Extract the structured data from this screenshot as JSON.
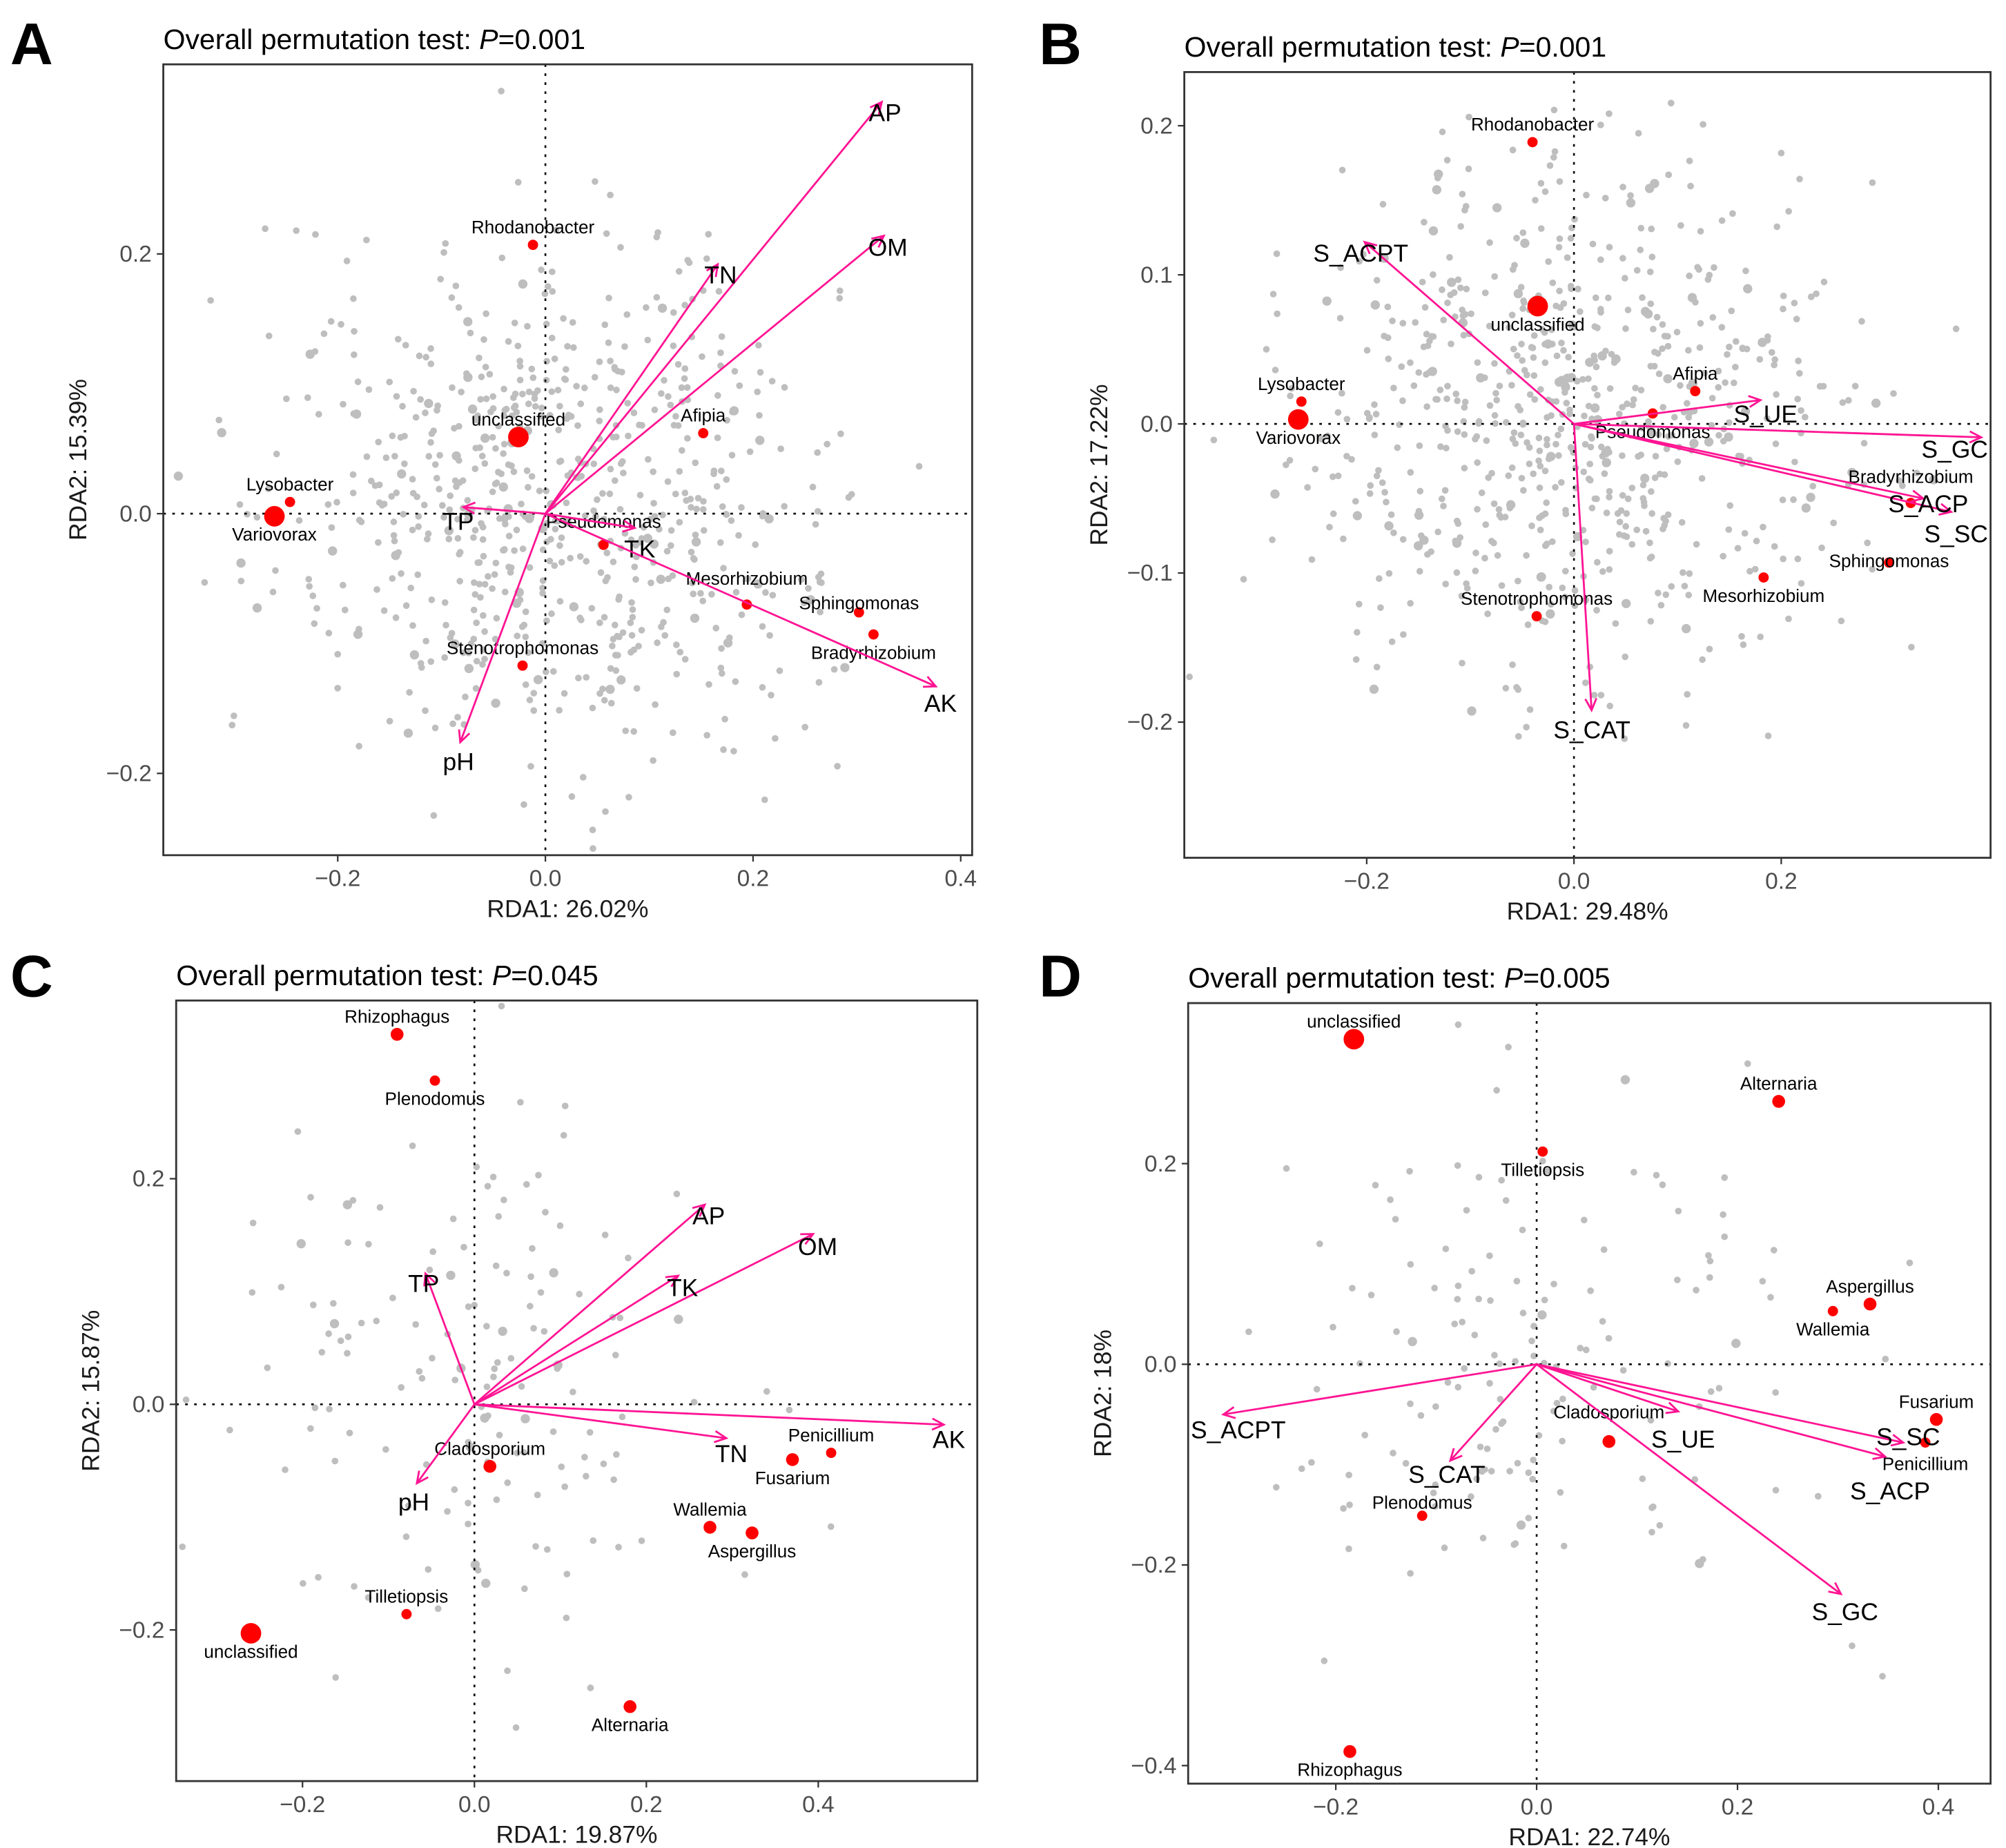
{
  "chart_data": [
    {
      "type": "scatter",
      "panel_letter": "A",
      "title_prefix": "Overall permutation test: ",
      "title_p": "P",
      "title_value": "=0.001",
      "xlabel": "RDA1: 26.02%",
      "ylabel": "RDA2: 15.39%",
      "xlim": [
        -0.368,
        0.411
      ],
      "ylim": [
        -0.263,
        0.346
      ],
      "xticks": [
        {
          "v": -0.2,
          "label": "−0.2"
        },
        {
          "v": 0,
          "label": "0.0"
        },
        {
          "v": 0.2,
          "label": "0.2"
        },
        {
          "v": 0.4,
          "label": "0.4"
        }
      ],
      "yticks": [
        {
          "v": -0.2,
          "label": "−0.2"
        },
        {
          "v": 0,
          "label": "0.0"
        },
        {
          "v": 0.2,
          "label": "0.2"
        }
      ],
      "background_point_count": 700,
      "background_spread": [
        0.13,
        0.1
      ],
      "arrows": [
        {
          "name": "AP",
          "x": 0.324,
          "y": 0.317
        },
        {
          "name": "OM",
          "x": 0.326,
          "y": 0.214
        },
        {
          "name": "TN",
          "x": 0.166,
          "y": 0.192
        },
        {
          "name": "TP",
          "x": -0.079,
          "y": 0.005
        },
        {
          "name": "pH",
          "x": -0.082,
          "y": -0.176
        },
        {
          "name": "TK",
          "x": 0.086,
          "y": -0.011
        },
        {
          "name": "AK",
          "x": 0.376,
          "y": -0.133
        }
      ],
      "species": [
        {
          "name": "Rhodanobacter",
          "x": -0.012,
          "y": 0.207,
          "size": "small",
          "label": "above"
        },
        {
          "name": "unclassified",
          "x": -0.026,
          "y": 0.059,
          "size": "large",
          "label": "above"
        },
        {
          "name": "Afipia",
          "x": 0.152,
          "y": 0.062,
          "size": "small",
          "label": "above"
        },
        {
          "name": "Lysobacter",
          "x": -0.246,
          "y": 0.009,
          "size": "small",
          "label": "above"
        },
        {
          "name": "Variovorax",
          "x": -0.261,
          "y": -0.002,
          "size": "large",
          "label": "below"
        },
        {
          "name": "Pseudomonas",
          "x": 0.056,
          "y": -0.024,
          "size": "small",
          "label": "above"
        },
        {
          "name": "Mesorhizobium",
          "x": 0.194,
          "y": -0.07,
          "size": "small",
          "label": "above"
        },
        {
          "name": "Sphingomonas",
          "x": 0.302,
          "y": -0.076,
          "size": "small",
          "label": "above"
        },
        {
          "name": "Bradyrhizobium",
          "x": 0.316,
          "y": -0.093,
          "size": "small",
          "label": "below"
        },
        {
          "name": "Stenotrophomonas",
          "x": -0.022,
          "y": -0.117,
          "size": "small",
          "label": "above"
        }
      ]
    },
    {
      "type": "scatter",
      "panel_letter": "B",
      "title_prefix": "Overall permutation test: ",
      "title_p": "P",
      "title_value": "=0.001",
      "xlabel": "RDA1: 29.48%",
      "ylabel": "RDA2: 17.22%",
      "xlim": [
        -0.376,
        0.402
      ],
      "ylim": [
        -0.291,
        0.236
      ],
      "xticks": [
        {
          "v": -0.2,
          "label": "−0.2"
        },
        {
          "v": 0,
          "label": "0.0"
        },
        {
          "v": 0.2,
          "label": "0.2"
        }
      ],
      "yticks": [
        {
          "v": -0.2,
          "label": "−0.2"
        },
        {
          "v": -0.1,
          "label": "−0.1"
        },
        {
          "v": 0,
          "label": "0.0"
        },
        {
          "v": 0.1,
          "label": "0.1"
        },
        {
          "v": 0.2,
          "label": "0.2"
        }
      ],
      "background_point_count": 700,
      "background_spread": [
        0.13,
        0.085
      ],
      "arrows": [
        {
          "name": "S_ACPT",
          "x": -0.202,
          "y": 0.122
        },
        {
          "name": "S_UE",
          "x": 0.18,
          "y": 0.016
        },
        {
          "name": "S_GC",
          "x": 0.393,
          "y": -0.009
        },
        {
          "name": "S_SC",
          "x": 0.364,
          "y": -0.059
        },
        {
          "name": "S_ACP",
          "x": 0.337,
          "y": -0.05
        },
        {
          "name": "S_CAT",
          "x": 0.017,
          "y": -0.192
        }
      ],
      "species": [
        {
          "name": "Rhodanobacter",
          "x": -0.04,
          "y": 0.189,
          "size": "small",
          "label": "above"
        },
        {
          "name": "unclassified",
          "x": -0.035,
          "y": 0.079,
          "size": "large",
          "label": "below"
        },
        {
          "name": "Lysobacter",
          "x": -0.263,
          "y": 0.015,
          "size": "small",
          "label": "above"
        },
        {
          "name": "Variovorax",
          "x": -0.266,
          "y": 0.003,
          "size": "large",
          "label": "below"
        },
        {
          "name": "Afipia",
          "x": 0.117,
          "y": 0.022,
          "size": "small",
          "label": "above"
        },
        {
          "name": "Pseudomonas",
          "x": 0.076,
          "y": 0.007,
          "size": "small",
          "label": "below"
        },
        {
          "name": "Bradyrhizobium",
          "x": 0.325,
          "y": -0.053,
          "size": "small",
          "label": "above"
        },
        {
          "name": "Sphingomonas",
          "x": 0.304,
          "y": -0.093,
          "size": "small",
          "label": "above"
        },
        {
          "name": "Mesorhizobium",
          "x": 0.183,
          "y": -0.103,
          "size": "small",
          "label": "below"
        },
        {
          "name": "Stenotrophomonas",
          "x": -0.036,
          "y": -0.129,
          "size": "small",
          "label": "above"
        }
      ]
    },
    {
      "type": "scatter",
      "panel_letter": "C",
      "title_prefix": "Overall permutation test: ",
      "title_p": "P",
      "title_value": "=0.045",
      "xlabel": "RDA1: 19.87%",
      "ylabel": "RDA2: 15.87%",
      "xlim": [
        -0.347,
        0.585
      ],
      "ylim": [
        -0.334,
        0.358
      ],
      "xticks": [
        {
          "v": -0.2,
          "label": "−0.2"
        },
        {
          "v": 0,
          "label": "0.0"
        },
        {
          "v": 0.2,
          "label": "0.2"
        },
        {
          "v": 0.4,
          "label": "0.4"
        }
      ],
      "yticks": [
        {
          "v": -0.2,
          "label": "−0.2"
        },
        {
          "v": 0,
          "label": "0.0"
        },
        {
          "v": 0.2,
          "label": "0.2"
        }
      ],
      "background_point_count": 150,
      "background_spread": [
        0.14,
        0.13
      ],
      "arrows": [
        {
          "name": "AP",
          "x": 0.268,
          "y": 0.177
        },
        {
          "name": "OM",
          "x": 0.394,
          "y": 0.151
        },
        {
          "name": "TK",
          "x": 0.237,
          "y": 0.114
        },
        {
          "name": "TP",
          "x": -0.057,
          "y": 0.116
        },
        {
          "name": "AK",
          "x": 0.546,
          "y": -0.018
        },
        {
          "name": "TN",
          "x": 0.293,
          "y": -0.03
        },
        {
          "name": "pH",
          "x": -0.067,
          "y": -0.07
        }
      ],
      "species": [
        {
          "name": "Rhizophagus",
          "x": -0.09,
          "y": 0.328,
          "size": "medium",
          "label": "above"
        },
        {
          "name": "Plenodomus",
          "x": -0.046,
          "y": 0.287,
          "size": "small",
          "label": "below"
        },
        {
          "name": "Cladosporium",
          "x": 0.018,
          "y": -0.055,
          "size": "medium",
          "label": "above"
        },
        {
          "name": "Penicillium",
          "x": 0.415,
          "y": -0.043,
          "size": "small",
          "label": "above"
        },
        {
          "name": "Fusarium",
          "x": 0.37,
          "y": -0.049,
          "size": "medium",
          "label": "below"
        },
        {
          "name": "Wallemia",
          "x": 0.274,
          "y": -0.109,
          "size": "medium",
          "label": "above"
        },
        {
          "name": "Aspergillus",
          "x": 0.323,
          "y": -0.114,
          "size": "medium",
          "label": "below"
        },
        {
          "name": "Tilletiopsis",
          "x": -0.079,
          "y": -0.186,
          "size": "small",
          "label": "above"
        },
        {
          "name": "unclassified",
          "x": -0.26,
          "y": -0.203,
          "size": "large",
          "label": "below"
        },
        {
          "name": "Alternaria",
          "x": 0.181,
          "y": -0.268,
          "size": "medium",
          "label": "below"
        }
      ]
    },
    {
      "type": "scatter",
      "panel_letter": "D",
      "title_prefix": "Overall permutation test: ",
      "title_p": "P",
      "title_value": "=0.005",
      "xlabel": "RDA1: 22.74%",
      "ylabel": "RDA2: 18%",
      "xlim": [
        -0.347,
        0.452
      ],
      "ylim": [
        -0.418,
        0.36
      ],
      "xticks": [
        {
          "v": -0.2,
          "label": "−0.2"
        },
        {
          "v": 0,
          "label": "0.0"
        },
        {
          "v": 0.2,
          "label": "0.2"
        },
        {
          "v": 0.4,
          "label": "0.4"
        }
      ],
      "yticks": [
        {
          "v": -0.4,
          "label": "−0.4"
        },
        {
          "v": -0.2,
          "label": "−0.2"
        },
        {
          "v": 0,
          "label": "0.0"
        },
        {
          "v": 0.2,
          "label": "0.2"
        }
      ],
      "background_point_count": 150,
      "background_spread": [
        0.14,
        0.13
      ],
      "arrows": [
        {
          "name": "S_ACPT",
          "x": -0.312,
          "y": -0.05
        },
        {
          "name": "S_CAT",
          "x": -0.086,
          "y": -0.096
        },
        {
          "name": "S_UE",
          "x": 0.141,
          "y": -0.047
        },
        {
          "name": "S_SC",
          "x": 0.365,
          "y": -0.078
        },
        {
          "name": "S_ACP",
          "x": 0.347,
          "y": -0.092
        },
        {
          "name": "S_GC",
          "x": 0.303,
          "y": -0.229
        }
      ],
      "species": [
        {
          "name": "unclassified",
          "x": -0.182,
          "y": 0.324,
          "size": "large",
          "label": "above"
        },
        {
          "name": "Alternaria",
          "x": 0.241,
          "y": 0.262,
          "size": "medium",
          "label": "above"
        },
        {
          "name": "Tilletiopsis",
          "x": 0.006,
          "y": 0.212,
          "size": "small",
          "label": "below"
        },
        {
          "name": "Aspergillus",
          "x": 0.332,
          "y": 0.06,
          "size": "medium",
          "label": "above"
        },
        {
          "name": "Wallemia",
          "x": 0.295,
          "y": 0.053,
          "size": "small",
          "label": "below"
        },
        {
          "name": "Fusarium",
          "x": 0.398,
          "y": -0.055,
          "size": "medium",
          "label": "above"
        },
        {
          "name": "Penicillium",
          "x": 0.387,
          "y": -0.078,
          "size": "small",
          "label": "below"
        },
        {
          "name": "Cladosporium",
          "x": 0.072,
          "y": -0.077,
          "size": "medium",
          "label": "above"
        },
        {
          "name": "Plenodomus",
          "x": -0.114,
          "y": -0.151,
          "size": "small",
          "label": "above"
        },
        {
          "name": "Rhizophagus",
          "x": -0.186,
          "y": -0.386,
          "size": "medium",
          "label": "below"
        }
      ]
    }
  ],
  "colors": {
    "arrow": "#ff1493",
    "species_point": "#ff0000",
    "background_point": "#bebebe"
  }
}
